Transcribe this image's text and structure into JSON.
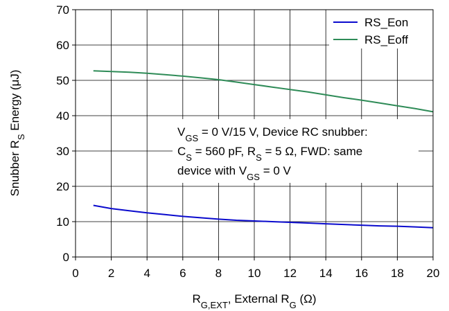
{
  "chart_data": {
    "type": "line",
    "xlabel": {
      "main": "R",
      "sub1": "G,EXT",
      "rest": ", External R",
      "sub2": "G",
      "tail": " (Ω)"
    },
    "ylabel": {
      "pre": "Snubber R",
      "sub": "S",
      "post": " Energy (μJ)"
    },
    "xlim": [
      0,
      20
    ],
    "ylim": [
      0,
      70
    ],
    "x_ticks": [
      0,
      2,
      4,
      6,
      8,
      10,
      12,
      14,
      16,
      18,
      20
    ],
    "y_ticks": [
      0,
      10,
      20,
      30,
      40,
      50,
      60,
      70
    ],
    "grid": true,
    "legend_position": "top-right",
    "series": [
      {
        "name": "RS_Eon",
        "color": "#0a0acd",
        "x": [
          1,
          2,
          3,
          4,
          5,
          6,
          7,
          8,
          9,
          10,
          11,
          12,
          13,
          14,
          15,
          16,
          17,
          18,
          19,
          20
        ],
        "y": [
          14.6,
          13.7,
          13.1,
          12.5,
          12.0,
          11.5,
          11.1,
          10.7,
          10.4,
          10.2,
          10.0,
          9.8,
          9.6,
          9.4,
          9.2,
          9.0,
          8.8,
          8.7,
          8.5,
          8.3
        ]
      },
      {
        "name": "RS_Eoff",
        "color": "#2e8b57",
        "x": [
          1,
          2,
          3,
          4,
          5,
          6,
          7,
          8,
          9,
          10,
          11,
          12,
          13,
          14,
          15,
          16,
          17,
          18,
          19,
          20
        ],
        "y": [
          52.7,
          52.5,
          52.3,
          52.0,
          51.6,
          51.2,
          50.7,
          50.2,
          49.5,
          48.8,
          48.1,
          47.4,
          46.7,
          45.9,
          45.1,
          44.4,
          43.6,
          42.8,
          42.0,
          41.1
        ]
      }
    ],
    "annotation": {
      "line1": [
        {
          "t": "V"
        },
        {
          "t": "GS",
          "sub": true
        },
        {
          "t": " = 0 V/15 V, Device RC snubber:"
        }
      ],
      "line2": [
        {
          "t": "C"
        },
        {
          "t": "S",
          "sub": true
        },
        {
          "t": " = 560 pF, R"
        },
        {
          "t": "S",
          "sub": true
        },
        {
          "t": " = 5 Ω, FWD: same"
        }
      ],
      "line3": [
        {
          "t": "device with V"
        },
        {
          "t": "GS",
          "sub": true
        },
        {
          "t": " = 0 V"
        }
      ]
    }
  }
}
